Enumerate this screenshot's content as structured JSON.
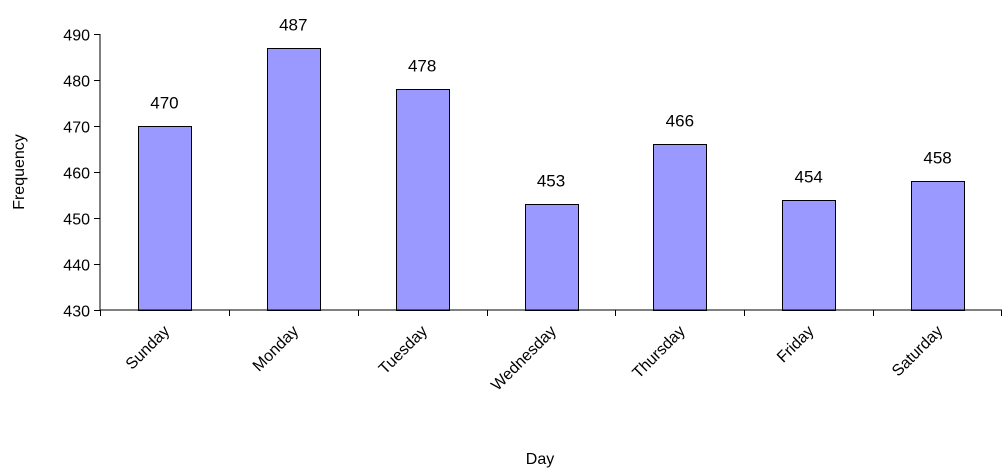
{
  "chart_data": {
    "type": "bar",
    "title": "",
    "xlabel": "Day",
    "ylabel": "Frequency",
    "categories": [
      "Sunday",
      "Monday",
      "Tuesday",
      "Wednesday",
      "Thursday",
      "Friday",
      "Saturday"
    ],
    "values": [
      470,
      487,
      478,
      453,
      466,
      454,
      458
    ],
    "data_labels": [
      "470",
      "487",
      "478",
      "453",
      "466",
      "454",
      "458"
    ],
    "ylim": [
      430,
      490
    ],
    "yticks": [
      430,
      440,
      450,
      460,
      470,
      480,
      490
    ],
    "ytick_labels": [
      "430",
      "440",
      "450",
      "460",
      "470",
      "480",
      "490"
    ],
    "grid": false,
    "legend": "none",
    "bar_color": "#9999ff",
    "bar_edge_color": "#000000"
  }
}
